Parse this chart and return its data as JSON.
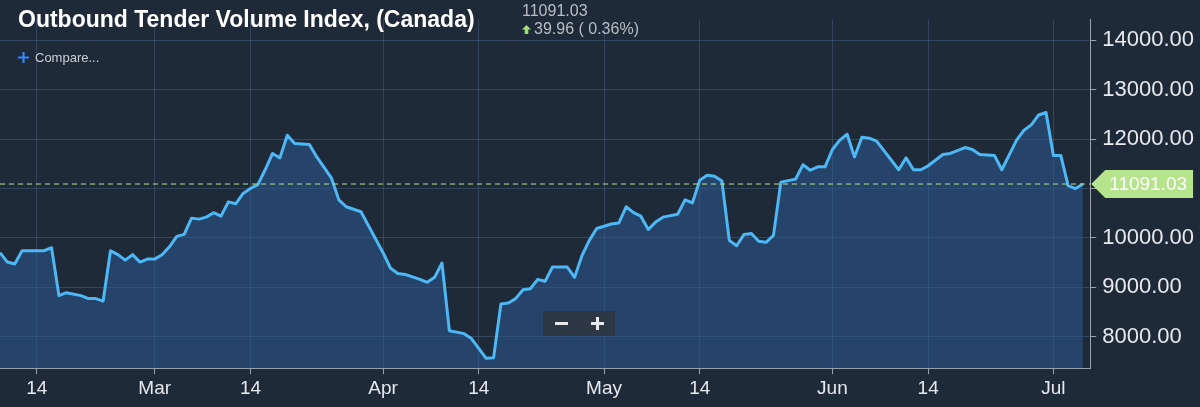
{
  "chart_data": {
    "type": "area",
    "title": "Outbound Tender Volume Index, (Canada)",
    "annotations": [
      "11091.03",
      "39.96 ( 0.36%)",
      "Compare..."
    ],
    "x": [
      "--02-09",
      "--02-10",
      "--02-11",
      "--02-12",
      "--02-15",
      "--02-16",
      "--02-17",
      "--02-18",
      "--02-20",
      "--02-21",
      "--02-22",
      "--02-23",
      "--02-24",
      "--02-25",
      "--02-26",
      "--02-27",
      "--02-28",
      "--02-29",
      "--03-01",
      "--03-02",
      "--03-03",
      "--03-04",
      "--03-05",
      "--03-06",
      "--03-07",
      "--03-08",
      "--03-09",
      "--03-10",
      "--03-11",
      "--03-12",
      "--03-13",
      "--03-14",
      "--03-15",
      "--03-16",
      "--03-17",
      "--03-18",
      "--03-19",
      "--03-20",
      "--03-22",
      "--03-23",
      "--03-25",
      "--03-26",
      "--03-27",
      "--03-29",
      "--04-01",
      "--04-02",
      "--04-03",
      "--04-04",
      "--04-06",
      "--04-07",
      "--04-08",
      "--04-09",
      "--04-10",
      "--04-12",
      "--04-13",
      "--04-15",
      "--04-16",
      "--04-17",
      "--04-18",
      "--04-19",
      "--04-20",
      "--04-21",
      "--04-22",
      "--04-23",
      "--04-24",
      "--04-26",
      "--04-27",
      "--04-28",
      "--04-29",
      "--04-30",
      "--05-02",
      "--05-03",
      "--05-04",
      "--05-05",
      "--05-06",
      "--05-07",
      "--05-08",
      "--05-09",
      "--05-11",
      "--05-12",
      "--05-13",
      "--05-14",
      "--05-15",
      "--05-16",
      "--05-17",
      "--05-18",
      "--05-19",
      "--05-20",
      "--05-21",
      "--05-22",
      "--05-23",
      "--05-24",
      "--05-25",
      "--05-27",
      "--05-28",
      "--05-29",
      "--05-30",
      "--05-31",
      "--06-01",
      "--06-02",
      "--06-03",
      "--06-04",
      "--06-05",
      "--06-06",
      "--06-07",
      "--06-10",
      "--06-11",
      "--06-12",
      "--06-13",
      "--06-14",
      "--06-16",
      "--06-17",
      "--06-19",
      "--06-20",
      "--06-21",
      "--06-23",
      "--06-24",
      "--06-26",
      "--06-27",
      "--06-28",
      "--06-29",
      "--06-30",
      "--07-01",
      "--07-02",
      "--07-03",
      "--07-04",
      "--07-05"
    ],
    "series": [
      {
        "color": "#4db8f5",
        "values": [
          9700,
          9510,
          9470,
          9740,
          9740,
          9800,
          8830,
          8890,
          8830,
          8770,
          8770,
          8720,
          9740,
          9660,
          9550,
          9660,
          9510,
          9570,
          9570,
          9660,
          9820,
          10030,
          10070,
          10400,
          10380,
          10420,
          10510,
          10440,
          10730,
          10690,
          10900,
          11000,
          11080,
          11380,
          11710,
          11620,
          12080,
          11910,
          11890,
          11640,
          11210,
          10770,
          10630,
          10530,
          9700,
          9390,
          9280,
          9260,
          9160,
          9100,
          9200,
          9490,
          8120,
          8060,
          7960,
          7560,
          7570,
          8660,
          8680,
          8770,
          8950,
          8970,
          9160,
          9120,
          9410,
          9410,
          9200,
          9640,
          9950,
          10190,
          10280,
          10300,
          10630,
          10510,
          10440,
          10170,
          10320,
          10420,
          10480,
          10770,
          10710,
          11170,
          11270,
          11250,
          11150,
          9950,
          9840,
          10070,
          10090,
          9930,
          9910,
          10050,
          11130,
          11190,
          11480,
          11370,
          11440,
          11440,
          11790,
          11980,
          12100,
          11640,
          12040,
          12020,
          11960,
          11380,
          11620,
          11380,
          11380,
          11460,
          11690,
          11710,
          11830,
          11790,
          11690,
          11670,
          11380,
          11980,
          12180,
          12290,
          12490,
          12540,
          11670,
          11670,
          11060,
          11000,
          11090
        ]
      }
    ],
    "xlim": [
      "--02-09",
      "--07-06"
    ],
    "xticks": [
      {
        "value": "--02-14",
        "label": "14"
      },
      {
        "value": "--03-01",
        "label": "Mar"
      },
      {
        "value": "--03-14",
        "label": "14"
      },
      {
        "value": "--04-01",
        "label": "Apr"
      },
      {
        "value": "--04-14",
        "label": "14"
      },
      {
        "value": "--05-01",
        "label": "May"
      },
      {
        "value": "--05-14",
        "label": "14"
      },
      {
        "value": "--06-01",
        "label": "Jun"
      },
      {
        "value": "--06-14",
        "label": "14"
      },
      {
        "value": "--07-01",
        "label": "Jul"
      }
    ],
    "ylim": [
      7360,
      14430
    ],
    "yticks": [
      {
        "value": 8000,
        "label": "8000.00"
      },
      {
        "value": 9000,
        "label": "9000.00"
      },
      {
        "value": 10000,
        "label": "10000.00"
      },
      {
        "value": 11000,
        "label": null
      },
      {
        "value": 12000,
        "label": "12000.00"
      },
      {
        "value": 13000,
        "label": "13000.00"
      },
      {
        "value": 14000,
        "label": "14000.00"
      }
    ],
    "ref_lines": [
      {
        "axis": "y",
        "value": 11091.03,
        "label": "11091.03",
        "color": "#b5e48c",
        "line_style": "dashed"
      }
    ],
    "grid": true,
    "legend": false
  }
}
